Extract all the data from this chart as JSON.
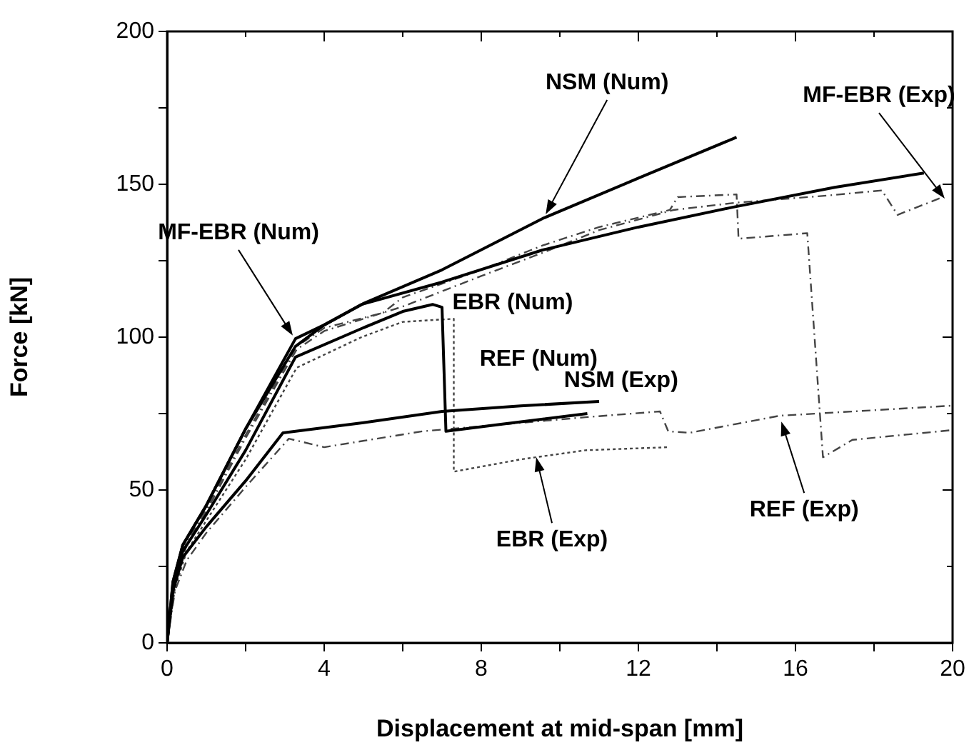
{
  "chart_data": {
    "type": "line",
    "xlabel": "Displacement at mid-span [mm]",
    "ylabel": "Force [kN]",
    "xlim": [
      0,
      20
    ],
    "xticks": [
      0,
      {
        "value": 2,
        "label": null
      },
      4,
      {
        "value": 6,
        "label": null
      },
      8,
      {
        "value": 10,
        "label": null
      },
      12,
      {
        "value": 14,
        "label": null
      },
      16,
      {
        "value": 18,
        "label": null
      },
      20
    ],
    "ylim": [
      0,
      200
    ],
    "yticks": [
      0,
      {
        "value": 25,
        "label": null
      },
      50,
      {
        "value": 75,
        "label": null
      },
      100,
      {
        "value": 125,
        "label": null
      },
      150,
      {
        "value": 175,
        "label": null
      },
      200
    ],
    "grid": false,
    "legend": false,
    "marker": "none",
    "series": [
      {
        "color": "#000000",
        "line_style": "solid",
        "x": [
          0,
          0.15,
          0.4,
          1,
          2,
          3.27,
          4,
          5,
          7,
          9.56,
          12,
          14.5
        ],
        "values": [
          0,
          20,
          32,
          45,
          70,
          97,
          104,
          111,
          122,
          138.8,
          152,
          165.4
        ]
      },
      {
        "color": "#000000",
        "line_style": "solid",
        "x": [
          0,
          0.15,
          0.4,
          1,
          2,
          3.27,
          4,
          4.95,
          7,
          9.56,
          12,
          14.4,
          17,
          19.27
        ],
        "values": [
          0,
          20,
          32,
          45,
          70,
          99.5,
          104,
          110.7,
          118,
          128.5,
          136,
          142.5,
          149,
          153.7
        ]
      },
      {
        "color": "#000000",
        "line_style": "solid",
        "x": [
          0,
          0.15,
          0.4,
          1,
          2,
          3.27,
          4.95,
          6,
          6.76,
          7,
          7.1,
          8.5,
          10.7
        ],
        "values": [
          0,
          18,
          30,
          42,
          63,
          93.5,
          102.8,
          108.4,
          110.7,
          109.8,
          69.2,
          71.5,
          75
        ]
      },
      {
        "color": "#000000",
        "line_style": "solid",
        "x": [
          0,
          0.15,
          0.4,
          1,
          2,
          2.95,
          5,
          7,
          9,
          11
        ],
        "values": [
          0,
          17,
          28,
          38,
          53,
          68.7,
          72,
          75.7,
          77.5,
          79
        ]
      },
      {
        "color": "#444444",
        "line_style": "dashed",
        "x": [
          0,
          0.2,
          0.5,
          1,
          2,
          3.3,
          4,
          6,
          8,
          9.56,
          11,
          12.9,
          14.5,
          16.8,
          18.2,
          18.6,
          19.75
        ],
        "values": [
          0,
          20,
          32,
          43,
          67,
          96,
          102,
          110,
          120,
          127.6,
          135,
          141.6,
          144,
          146.3,
          148,
          140,
          145.8
        ]
      },
      {
        "color": "#444444",
        "line_style": "dashed",
        "x": [
          0,
          0.2,
          0.5,
          1,
          2,
          3.3,
          4,
          5.5,
          6,
          8,
          9.56,
          11,
          12.8,
          13,
          14.5,
          14.55,
          16.3,
          16.7,
          17.45,
          20
        ],
        "values": [
          0,
          20,
          33,
          44,
          68,
          97,
          103,
          108,
          113,
          122,
          130,
          136,
          141.6,
          145.8,
          146.7,
          132.2,
          134,
          60.7,
          66.4,
          69.6
        ]
      },
      {
        "color": "#444444",
        "line_style": "dotted",
        "x": [
          0,
          0.2,
          0.5,
          1,
          2,
          3.3,
          4.95,
          6,
          7.3,
          7.3,
          9,
          10.65,
          12.76
        ],
        "values": [
          0,
          18,
          30,
          40,
          60,
          90,
          100,
          105,
          106,
          56,
          60,
          63,
          64
        ]
      },
      {
        "color": "#444444",
        "line_style": "dashed",
        "x": [
          0,
          0.2,
          0.5,
          1,
          2,
          3.1,
          4,
          6.5,
          10.65,
          12.55,
          12.76,
          13.3,
          15.6,
          20
        ],
        "values": [
          0,
          17,
          27,
          36,
          51,
          66.8,
          64,
          69.2,
          73.8,
          75.7,
          69.2,
          68.7,
          74.3,
          77.6
        ]
      }
    ],
    "annotations": [
      {
        "text": "NSM (Num)",
        "x": 9.64,
        "y": 140.2
      },
      {
        "text": "MF-EBR (Exp)",
        "x": 19.8,
        "y": 145.3
      },
      {
        "text": "MF-EBR (Num)",
        "x": 3.2,
        "y": 100.5
      },
      "EBR (Num)",
      "NSM (Exp)",
      "REF (Num)",
      {
        "text": "EBR (Exp)",
        "x": 9.4,
        "y": 60.7
      },
      {
        "text": "REF (Exp)",
        "x": 15.64,
        "y": 72.4
      }
    ]
  }
}
